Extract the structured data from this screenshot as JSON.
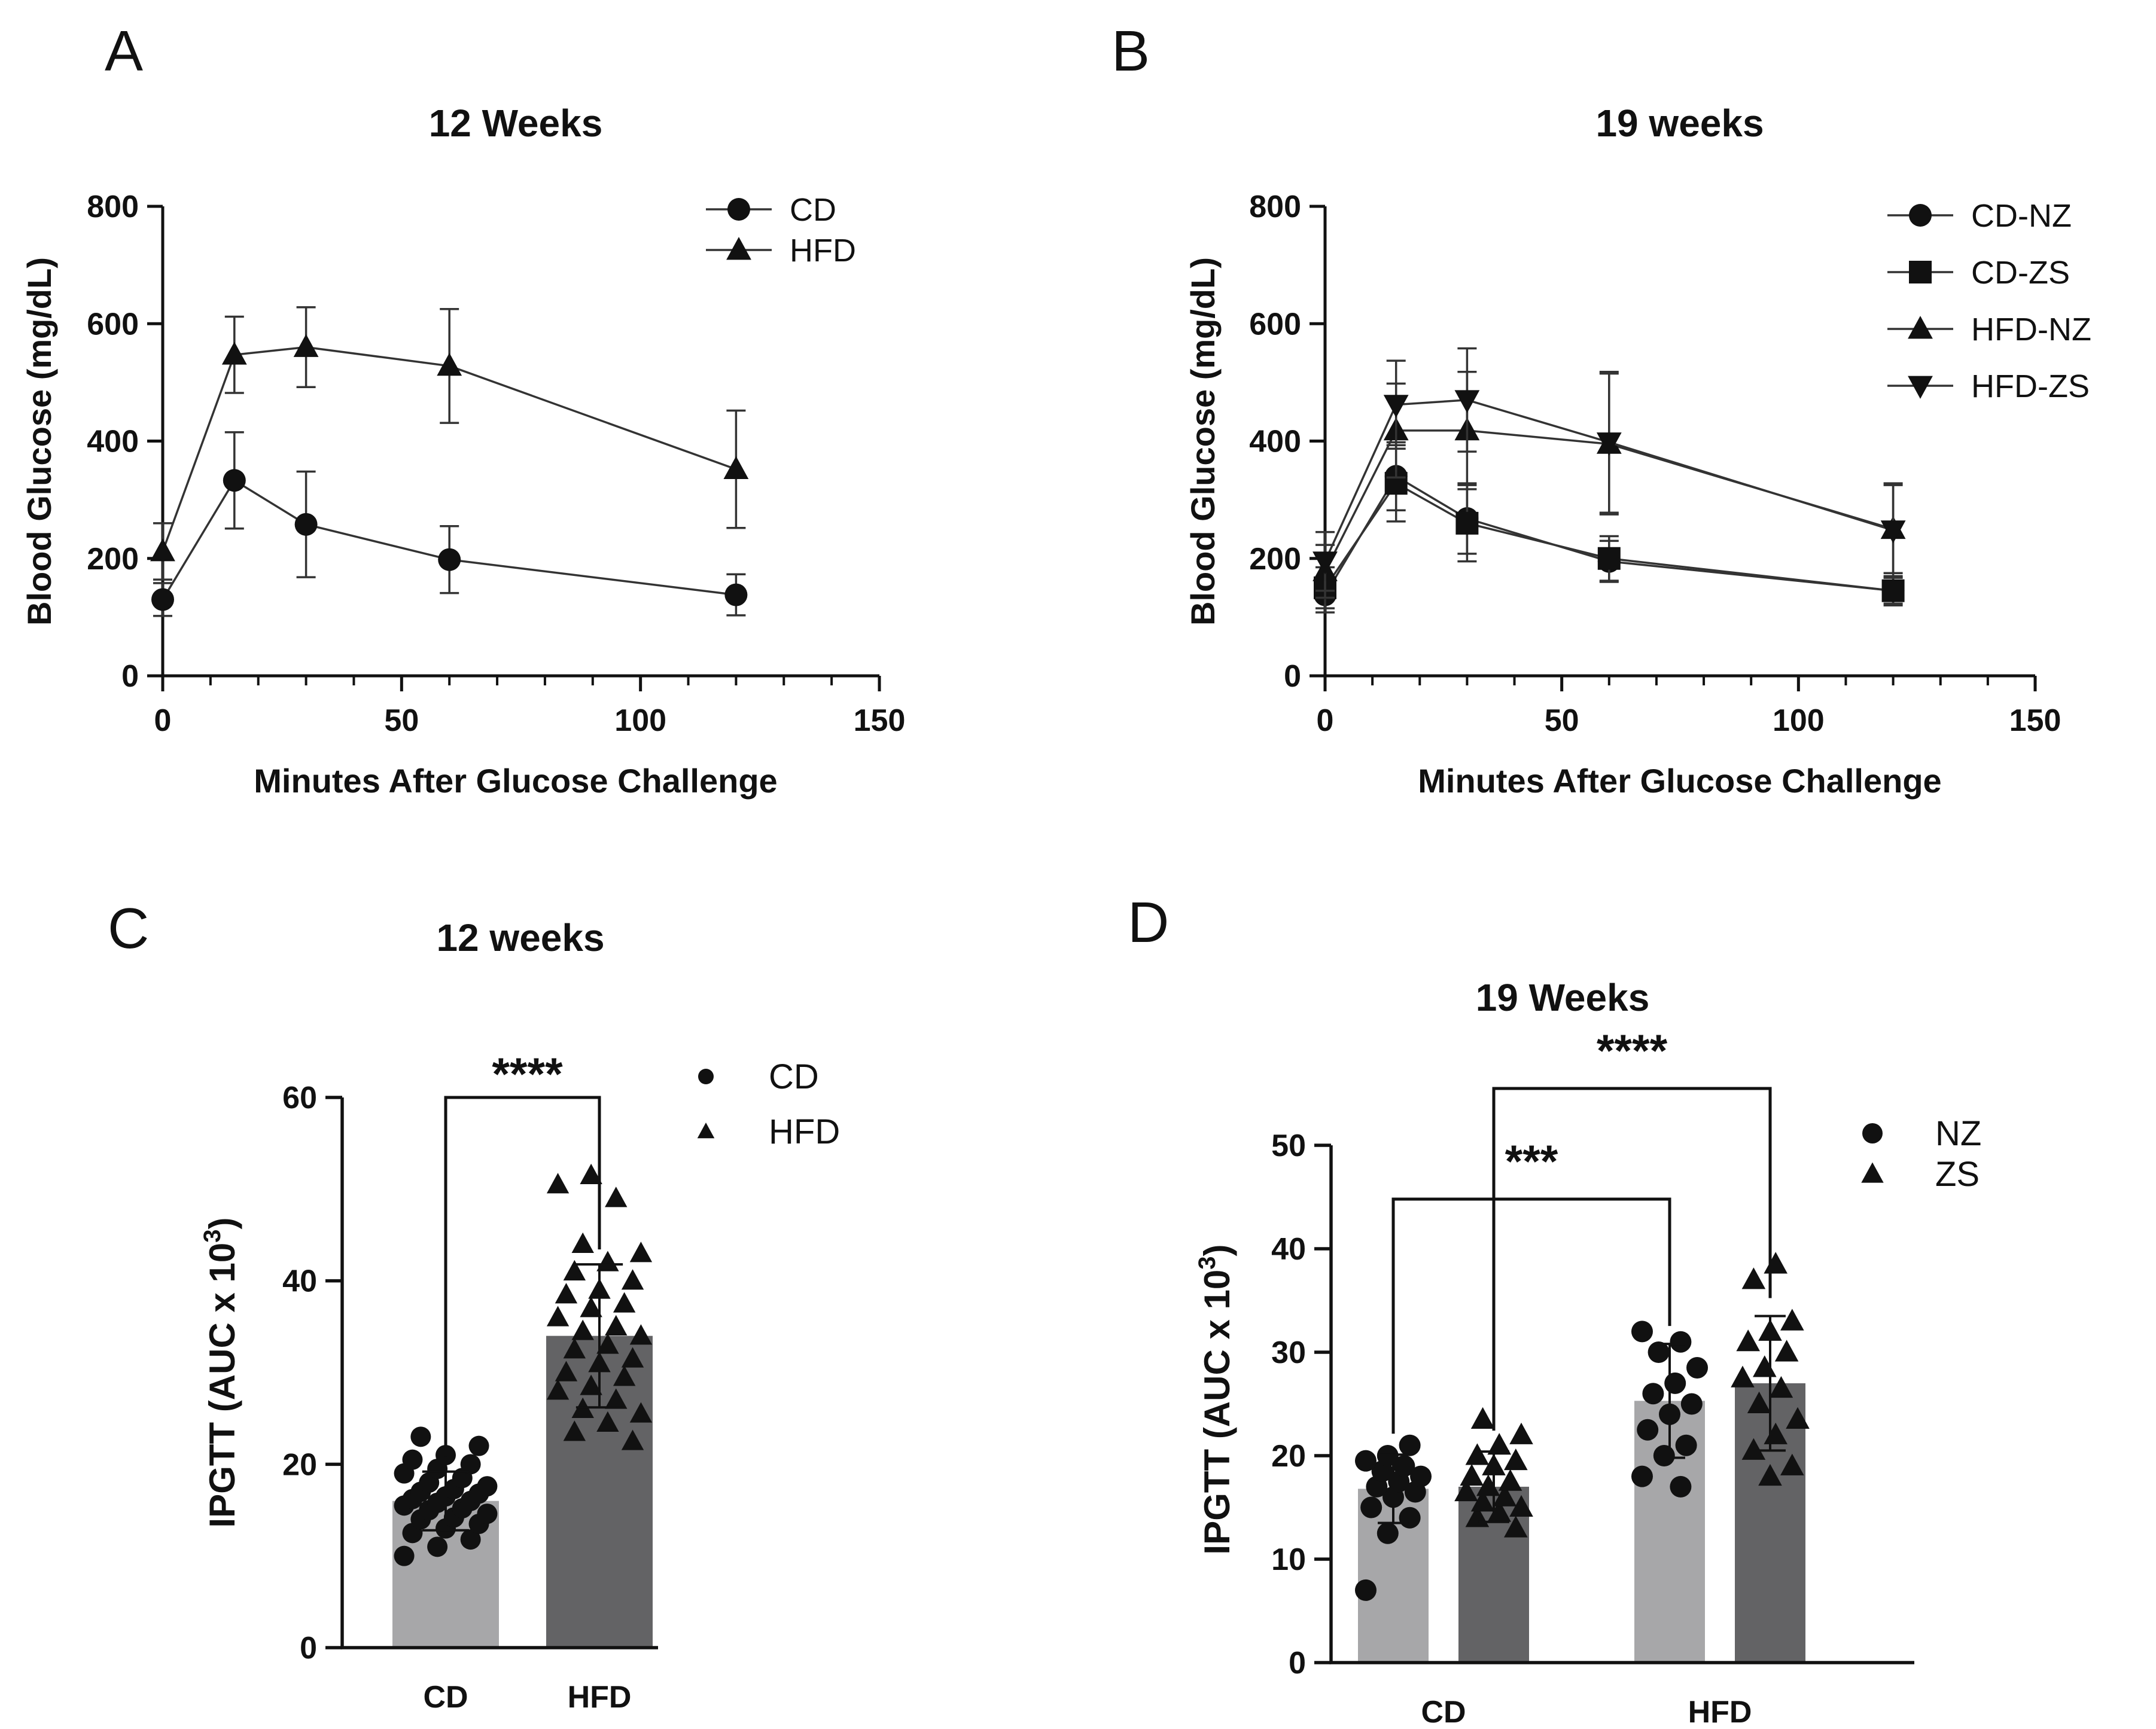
{
  "colors": {
    "ink": "#111111",
    "bar_light": "#a7a7a9",
    "bar_dark": "#636365",
    "line": "#333333"
  },
  "chart_data": [
    {
      "id": "A",
      "panel_letter": "A",
      "type": "line",
      "title": "12 Weeks",
      "xlabel": "Minutes After Glucose Challenge",
      "ylabel": "Blood Glucose (mg/dL)",
      "xlim": [
        0,
        150
      ],
      "ylim": [
        0,
        800
      ],
      "x_ticks": [
        "0",
        "50",
        "100",
        "150"
      ],
      "y_ticks": [
        "0",
        "200",
        "400",
        "600",
        "800"
      ],
      "legend_position": "top-right",
      "x": [
        0,
        15,
        30,
        60,
        120
      ],
      "series": [
        {
          "name": "CD",
          "marker": "circle",
          "values": [
            130,
            333,
            258,
            198,
            138
          ],
          "errors": [
            28,
            82,
            90,
            57,
            35
          ]
        },
        {
          "name": "HFD",
          "marker": "triangle-up",
          "values": [
            212,
            547,
            560,
            528,
            352
          ],
          "errors": [
            48,
            65,
            68,
            97,
            100
          ]
        }
      ]
    },
    {
      "id": "B",
      "panel_letter": "B",
      "type": "line",
      "title": "19 weeks",
      "xlabel": "Minutes After Glucose Challenge",
      "ylabel": "Blood Glucose (mg/dL)",
      "xlim": [
        0,
        150
      ],
      "ylim": [
        0,
        800
      ],
      "x_ticks": [
        "0",
        "50",
        "100",
        "150"
      ],
      "y_ticks": [
        "0",
        "200",
        "400",
        "600",
        "800"
      ],
      "legend_position": "top-right",
      "x": [
        0,
        15,
        30,
        60,
        120
      ],
      "series": [
        {
          "name": "CD-NZ",
          "marker": "circle",
          "values": [
            138,
            340,
            268,
            195,
            145
          ],
          "errors": [
            30,
            58,
            60,
            35,
            22
          ]
        },
        {
          "name": "CD-ZS",
          "marker": "square",
          "values": [
            150,
            328,
            260,
            200,
            145
          ],
          "errors": [
            35,
            65,
            65,
            38,
            25
          ]
        },
        {
          "name": "HFD-NZ",
          "marker": "triangle-up",
          "values": [
            178,
            418,
            418,
            395,
            250
          ],
          "errors": [
            45,
            80,
            100,
            120,
            75
          ]
        },
        {
          "name": "HFD-ZS",
          "marker": "triangle-down",
          "values": [
            195,
            462,
            470,
            398,
            248
          ],
          "errors": [
            50,
            75,
            88,
            120,
            80
          ]
        }
      ]
    },
    {
      "id": "C",
      "panel_letter": "C",
      "type": "bar",
      "title": "12 weeks",
      "xlabel": "",
      "ylabel": "IPGTT (AUC x 10",
      "ylabel_sup": "3",
      "ylabel_close": ")",
      "ylim": [
        0,
        60
      ],
      "y_ticks": [
        "0",
        "20",
        "40",
        "60"
      ],
      "categories": [
        "CD",
        "HFD"
      ],
      "legend_position": "top-right",
      "legend": [
        {
          "name": "CD",
          "marker": "circle"
        },
        {
          "name": "HFD",
          "marker": "triangle-up"
        }
      ],
      "bars": [
        {
          "category": "CD",
          "mean": 16.0,
          "sd": 3.2,
          "color": "light",
          "marker": "circle",
          "points": [
            10,
            11,
            11.8,
            12.5,
            13,
            13.5,
            14,
            14.2,
            14.6,
            15,
            15.2,
            15.5,
            15.8,
            16,
            16.2,
            16.5,
            16.8,
            17,
            17.3,
            17.6,
            18,
            18.5,
            19,
            19.5,
            20,
            20.5,
            21,
            22,
            23
          ]
        },
        {
          "category": "HFD",
          "mean": 34.0,
          "sd": 7.8,
          "color": "dark",
          "marker": "triangle-up",
          "points": [
            22.5,
            23.5,
            24.5,
            25.5,
            26,
            27,
            28,
            28.5,
            29.5,
            30,
            31,
            31.5,
            32.5,
            33,
            34,
            34.5,
            35,
            36,
            37,
            37.5,
            38.5,
            39,
            40,
            41,
            42,
            43,
            44,
            49,
            50.5,
            51.5
          ]
        }
      ],
      "comparisons": [
        {
          "from": "CD",
          "to": "HFD",
          "label": "****"
        }
      ]
    },
    {
      "id": "D",
      "panel_letter": "D",
      "type": "bar",
      "title": "19 Weeks",
      "xlabel": "",
      "ylabel": "IPGTT (AUC x 10",
      "ylabel_sup": "3",
      "ylabel_close": ")",
      "ylim": [
        0,
        50
      ],
      "y_ticks": [
        "0",
        "10",
        "20",
        "30",
        "40",
        "50"
      ],
      "categories": [
        "CD",
        "HFD"
      ],
      "legend_position": "top-right",
      "legend": [
        {
          "name": "NZ",
          "marker": "circle"
        },
        {
          "name": "ZS",
          "marker": "triangle-up"
        }
      ],
      "bars": [
        {
          "category": "CD",
          "group": "NZ",
          "mean": 16.8,
          "sd": 3.3,
          "color": "light",
          "marker": "circle",
          "points": [
            7,
            12.5,
            14,
            15,
            16,
            16.5,
            17,
            17.5,
            18,
            18.5,
            19,
            19.5,
            20,
            21
          ]
        },
        {
          "category": "CD",
          "group": "ZS",
          "mean": 17.0,
          "sd": 3.4,
          "color": "dark",
          "marker": "triangle-up",
          "points": [
            13,
            14,
            14.5,
            15,
            15.5,
            16,
            16.5,
            17,
            17.5,
            18,
            19,
            19.5,
            20,
            21,
            22,
            23.5
          ]
        },
        {
          "category": "HFD",
          "group": "NZ",
          "mean": 25.3,
          "sd": 5.5,
          "color": "light",
          "marker": "circle",
          "points": [
            17,
            18,
            20,
            21,
            22.5,
            24,
            25,
            26,
            27,
            28.5,
            30,
            31,
            32
          ]
        },
        {
          "category": "HFD",
          "group": "ZS",
          "mean": 27.0,
          "sd": 6.5,
          "color": "dark",
          "marker": "triangle-up",
          "points": [
            18,
            19,
            20.5,
            22,
            23.5,
            25,
            26.5,
            27.5,
            28.5,
            30,
            31,
            32,
            33,
            37,
            38.5
          ]
        }
      ],
      "comparisons": [
        {
          "from": "CD-NZ",
          "to": "HFD-NZ",
          "label": "***"
        },
        {
          "from": "CD-ZS",
          "to": "HFD-ZS",
          "label": "****"
        }
      ]
    }
  ]
}
